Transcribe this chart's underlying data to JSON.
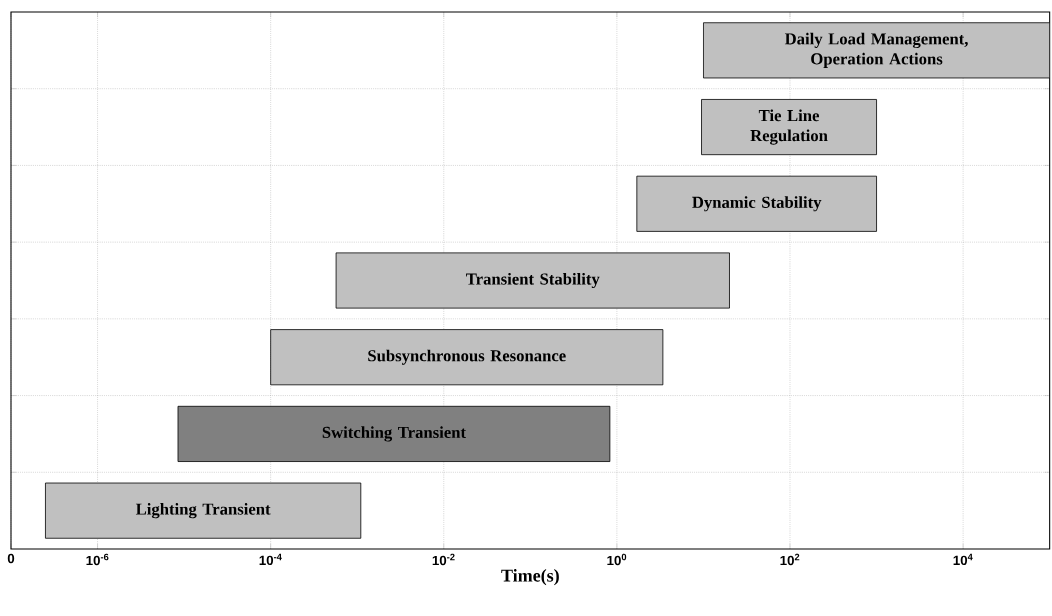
{
  "chart_data": {
    "type": "bar",
    "orientation": "horizontal",
    "xlabel": "Time(s)",
    "log": "x",
    "grid": true,
    "tick_labels": "x",
    "categories": [
      "Daily Load Management, Operation Actions",
      "Tie Line Regulation",
      "Dynamic Stability",
      "Transient Stability",
      "Subsynchronous Resonance",
      "Switching Transient",
      "Lighting Transient"
    ],
    "base": [
      10,
      9.5,
      1.7,
      0.00057,
      0.0001,
      8.5e-06,
      2.5e-07
    ],
    "values": [
      99990,
      990.5,
      998.3,
      19.99943,
      3.3999,
      0.8299915,
      0.00109975
    ],
    "colors": [
      "#c0c0c0",
      "#c0c0c0",
      "#c0c0c0",
      "#c0c0c0",
      "#c0c0c0",
      "#808080",
      "#c0c0c0"
    ],
    "xlim": [
      1e-07,
      100000.0
    ],
    "xticks": [
      {
        "value": 1e-07,
        "label": "0"
      },
      {
        "value": 1e-06,
        "label": "10$^{-6}$"
      },
      {
        "value": 0.0001,
        "label": "10$^{-4}$"
      },
      {
        "value": 0.01,
        "label": "10$^{-2}$"
      },
      {
        "value": 1,
        "label": "10$^{0}$"
      },
      {
        "value": 100,
        "label": "10$^{2}$"
      },
      {
        "value": 10000,
        "label": "10$^{4}$"
      }
    ]
  }
}
